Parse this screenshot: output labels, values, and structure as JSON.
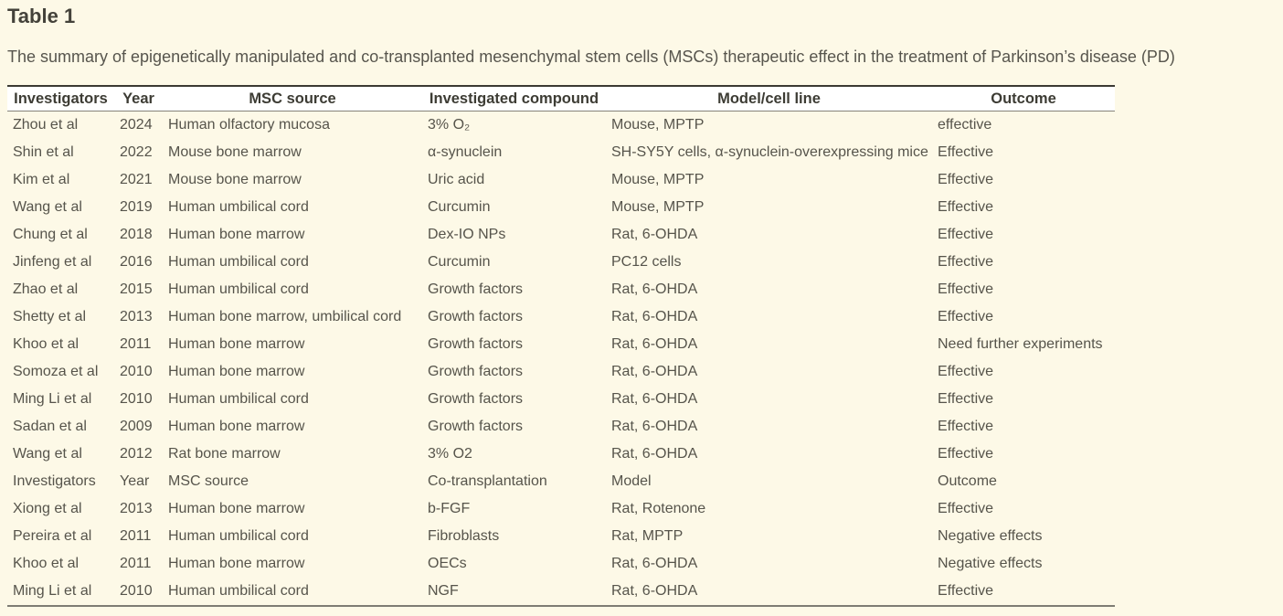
{
  "table_block": {
    "title": "Table 1",
    "caption": "The summary of epigenetically manipulated and co-transplanted mesenchymal stem cells (MSCs) therapeutic effect in the treatment of Parkinson’s disease (PD)",
    "columns": [
      {
        "key": "investigators",
        "label": "Investigators"
      },
      {
        "key": "year",
        "label": "Year"
      },
      {
        "key": "msc_source",
        "label": "MSC source"
      },
      {
        "key": "compound",
        "label": "Investigated compound"
      },
      {
        "key": "model",
        "label": "Model/cell line"
      },
      {
        "key": "outcome",
        "label": "Outcome"
      }
    ],
    "rows": [
      {
        "investigators": "Zhou et al",
        "year": "2024",
        "msc_source": "Human olfactory mucosa",
        "compound": "3% O₂",
        "model": "Mouse, MPTP",
        "outcome": "effective"
      },
      {
        "investigators": "Shin et al",
        "year": "2022",
        "msc_source": "Mouse bone marrow",
        "compound": "α-synuclein",
        "model": "SH-SY5Y cells, α-synuclein-overexpressing mice",
        "outcome": "Effective"
      },
      {
        "investigators": "Kim et al",
        "year": "2021",
        "msc_source": "Mouse bone marrow",
        "compound": "Uric acid",
        "model": "Mouse, MPTP",
        "outcome": "Effective"
      },
      {
        "investigators": "Wang et al",
        "year": "2019",
        "msc_source": "Human umbilical cord",
        "compound": "Curcumin",
        "model": "Mouse, MPTP",
        "outcome": "Effective"
      },
      {
        "investigators": "Chung et al",
        "year": "2018",
        "msc_source": "Human bone marrow",
        "compound": "Dex-IO NPs",
        "model": "Rat, 6-OHDA",
        "outcome": "Effective"
      },
      {
        "investigators": "Jinfeng et al",
        "year": "2016",
        "msc_source": "Human umbilical cord",
        "compound": "Curcumin",
        "model": "PC12 cells",
        "outcome": "Effective"
      },
      {
        "investigators": "Zhao et al",
        "year": "2015",
        "msc_source": "Human umbilical cord",
        "compound": "Growth factors",
        "model": "Rat, 6-OHDA",
        "outcome": "Effective"
      },
      {
        "investigators": "Shetty et al",
        "year": "2013",
        "msc_source": "Human bone marrow, umbilical cord",
        "compound": "Growth factors",
        "model": "Rat, 6-OHDA",
        "outcome": "Effective"
      },
      {
        "investigators": "Khoo et al",
        "year": "2011",
        "msc_source": "Human bone marrow",
        "compound": "Growth factors",
        "model": "Rat, 6-OHDA",
        "outcome": "Need further experiments"
      },
      {
        "investigators": "Somoza et al",
        "year": "2010",
        "msc_source": "Human bone marrow",
        "compound": "Growth factors",
        "model": "Rat, 6-OHDA",
        "outcome": "Effective"
      },
      {
        "investigators": "Ming Li et al",
        "year": "2010",
        "msc_source": "Human umbilical cord",
        "compound": "Growth factors",
        "model": "Rat, 6-OHDA",
        "outcome": "Effective"
      },
      {
        "investigators": "Sadan et al",
        "year": "2009",
        "msc_source": "Human bone marrow",
        "compound": "Growth factors",
        "model": "Rat, 6-OHDA",
        "outcome": "Effective"
      },
      {
        "investigators": "Wang et al",
        "year": "2012",
        "msc_source": "Rat bone marrow",
        "compound": "3% O2",
        "model": "Rat, 6-OHDA",
        "outcome": "Effective"
      },
      {
        "investigators": "Investigators",
        "year": "Year",
        "msc_source": "MSC source",
        "compound": "Co-transplantation",
        "model": "Model",
        "outcome": "Outcome"
      },
      {
        "investigators": "Xiong et al",
        "year": "2013",
        "msc_source": "Human bone marrow",
        "compound": "b-FGF",
        "model": "Rat, Rotenone",
        "outcome": "Effective"
      },
      {
        "investigators": "Pereira et al",
        "year": "2011",
        "msc_source": "Human umbilical cord",
        "compound": "Fibroblasts",
        "model": "Rat, MPTP",
        "outcome": "Negative effects"
      },
      {
        "investigators": "Khoo et al",
        "year": "2011",
        "msc_source": "Human bone marrow",
        "compound": "OECs",
        "model": "Rat, 6-OHDA",
        "outcome": "Negative effects"
      },
      {
        "investigators": "Ming Li et al",
        "year": "2010",
        "msc_source": "Human umbilical cord",
        "compound": "NGF",
        "model": "Rat, 6-OHDA",
        "outcome": "Effective"
      }
    ],
    "colors": {
      "page_background": "#fdf9e7",
      "header_background": "#ffffff",
      "title_text": "#44423a",
      "body_text": "#56544b",
      "border_dark": "#3b3a33",
      "border_bottom": "#7e7c73"
    }
  }
}
